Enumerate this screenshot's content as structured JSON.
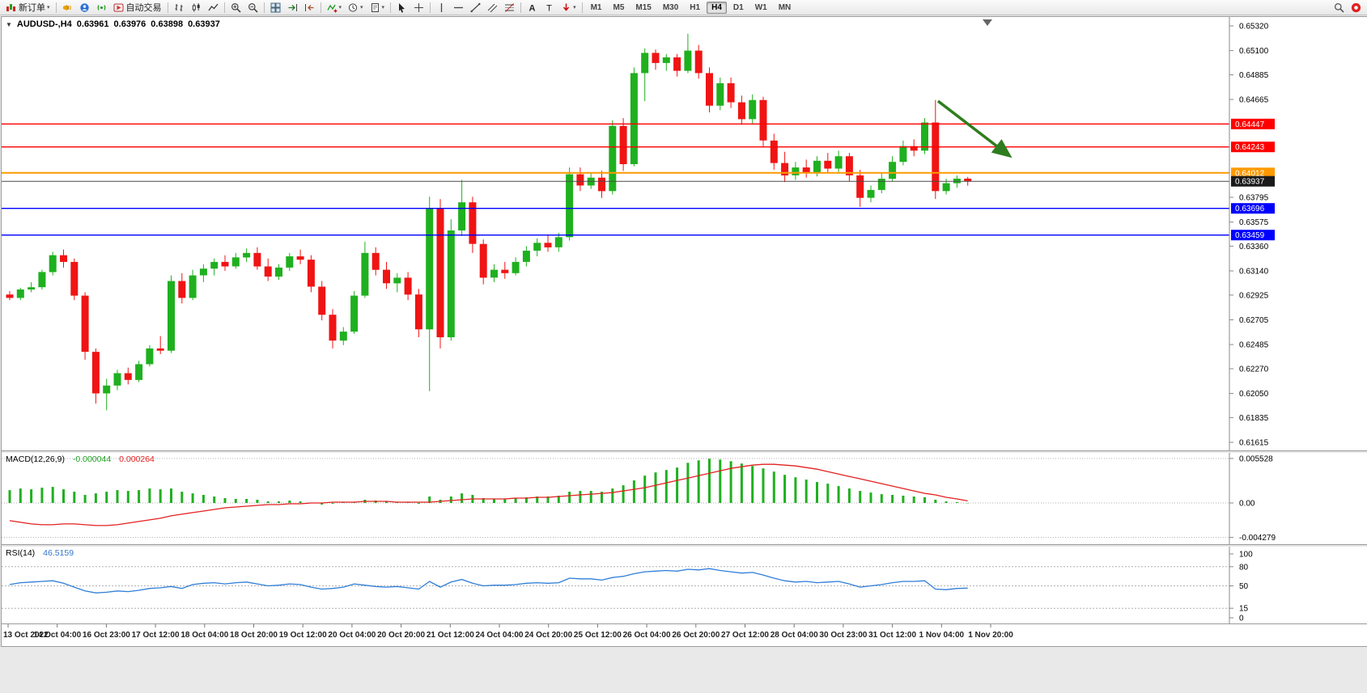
{
  "colors": {
    "candle_up": "#1fb01f",
    "candle_down": "#f01414",
    "macd_histogram": "#1fb01f",
    "macd_signal": "#e32020",
    "rsi_line": "#2f7ed8",
    "arrow": "#2e7d1e"
  },
  "toolbar": {
    "items": [
      {
        "name": "new-order",
        "icon": "new-order",
        "label": "新订单",
        "caret": true
      },
      {
        "sep": true
      },
      {
        "name": "megaphone",
        "icon": "megaphone"
      },
      {
        "name": "community",
        "icon": "community"
      },
      {
        "name": "signal",
        "icon": "signal"
      },
      {
        "name": "autotrading",
        "icon": "autotrading",
        "label": "自动交易"
      },
      {
        "sep": true
      },
      {
        "name": "bar-chart",
        "icon": "bar-chart"
      },
      {
        "name": "candle-chart",
        "icon": "candle-chart"
      },
      {
        "name": "line-chart",
        "icon": "line-chart"
      },
      {
        "sep": true
      },
      {
        "name": "zoom-in",
        "icon": "zoom-in"
      },
      {
        "name": "zoom-out",
        "icon": "zoom-out"
      },
      {
        "sep": true
      },
      {
        "name": "tile-windows",
        "icon": "tile-windows"
      },
      {
        "name": "auto-scroll",
        "icon": "auto-scroll"
      },
      {
        "name": "chart-shift",
        "icon": "chart-shift"
      },
      {
        "sep": true
      },
      {
        "name": "indicators",
        "icon": "indicators",
        "caret": true
      },
      {
        "name": "periods",
        "icon": "periods",
        "caret": true
      },
      {
        "name": "templates",
        "icon": "templates",
        "caret": true
      },
      {
        "sep": true
      },
      {
        "name": "cursor",
        "icon": "cursor"
      },
      {
        "name": "crosshair",
        "icon": "crosshair"
      },
      {
        "sep": true
      },
      {
        "name": "vertical-line",
        "icon": "vertical-line"
      },
      {
        "name": "horizontal-line",
        "icon": "horizontal-line"
      },
      {
        "name": "trendline",
        "icon": "trendline"
      },
      {
        "name": "channel",
        "icon": "channel"
      },
      {
        "name": "fibonacci",
        "icon": "fibonacci"
      },
      {
        "sep": true
      },
      {
        "name": "text",
        "icon": "text"
      },
      {
        "name": "text-label",
        "icon": "text-label"
      },
      {
        "name": "arrows",
        "icon": "arrows",
        "caret": true
      },
      {
        "sep": true
      },
      {
        "tf": "M1"
      },
      {
        "tf": "M5"
      },
      {
        "tf": "M15"
      },
      {
        "tf": "M30"
      },
      {
        "tf": "H1"
      },
      {
        "tf": "H4",
        "active": true
      },
      {
        "tf": "D1"
      },
      {
        "tf": "W1"
      },
      {
        "tf": "MN"
      },
      {
        "spacer": true
      },
      {
        "name": "search",
        "icon": "search"
      },
      {
        "name": "notification",
        "icon": "notification"
      }
    ]
  },
  "chart": {
    "collapse_marker": "▼",
    "symbol_period": "AUDUSD-,H4",
    "open": "0.63961",
    "high": "0.63976",
    "low": "0.63898",
    "close": "0.63937"
  },
  "price_axis": {
    "ticks": [
      "0.65320",
      "0.65100",
      "0.64885",
      "0.64665",
      "0.63795",
      "0.63575",
      "0.63360",
      "0.63140",
      "0.62925",
      "0.62705",
      "0.62485",
      "0.62270",
      "0.62050",
      "0.61835",
      "0.61615"
    ]
  },
  "levels": [
    {
      "name": "resistance-upper",
      "price": 0.64447,
      "color": "#ff0000",
      "width": 1.4,
      "label_box": true
    },
    {
      "name": "resistance-lower",
      "price": 0.64243,
      "color": "#ff0000",
      "width": 1.4,
      "label_box": true
    },
    {
      "name": "pivot-orange",
      "price": 0.64012,
      "color": "#ff9900",
      "width": 2,
      "label_box": true
    },
    {
      "name": "current-price",
      "price": 0.63937,
      "color": "#4a4a4a",
      "width": 1,
      "label_box": true,
      "box_color": "#1a1a1a"
    },
    {
      "name": "support-upper",
      "price": 0.63696,
      "color": "#0000ff",
      "width": 1.4,
      "label_box": true
    },
    {
      "name": "support-lower",
      "price": 0.63459,
      "color": "#0000ff",
      "width": 1.4,
      "label_box": true
    }
  ],
  "indicators": {
    "macd": {
      "name": "MACD(12,26,9)",
      "main_value": "-0.000044",
      "signal_value": "0.000264",
      "axis_ticks": [
        "0.005528",
        "0.00",
        "-0.004279"
      ]
    },
    "rsi": {
      "name": "RSI(14)",
      "value": "46.5159",
      "axis_ticks": [
        "100",
        "80",
        "50",
        "15",
        "0"
      ],
      "levels": [
        80,
        50,
        15
      ]
    }
  },
  "time_axis": {
    "labels": [
      "13 Oct 2022",
      "14 Oct 04:00",
      "16 Oct 23:00",
      "17 Oct 12:00",
      "18 Oct 04:00",
      "18 Oct 20:00",
      "19 Oct 12:00",
      "20 Oct 04:00",
      "20 Oct 20:00",
      "21 Oct 12:00",
      "24 Oct 04:00",
      "24 Oct 20:00",
      "25 Oct 12:00",
      "26 Oct 04:00",
      "26 Oct 20:00",
      "27 Oct 12:00",
      "28 Oct 04:00",
      "30 Oct 23:00",
      "31 Oct 12:00",
      "1 Nov 04:00",
      "1 Nov 20:00"
    ]
  },
  "annotations": {
    "trend_arrow": {
      "direction": "down-right",
      "color": "#2e7d1e"
    }
  },
  "chart_data": [
    {
      "type": "candlestick",
      "name": "AUDUSD H4",
      "ylim": [
        0.61615,
        0.6532
      ],
      "ohlc": [
        [
          0.6293,
          0.6296,
          0.6288,
          0.629
        ],
        [
          0.629,
          0.6299,
          0.6288,
          0.62975
        ],
        [
          0.62975,
          0.6304,
          0.6295,
          0.62995
        ],
        [
          0.62995,
          0.6315,
          0.62975,
          0.6313
        ],
        [
          0.6313,
          0.6331,
          0.631,
          0.6328
        ],
        [
          0.6328,
          0.6333,
          0.6317,
          0.6322
        ],
        [
          0.6322,
          0.6325,
          0.6288,
          0.6292
        ],
        [
          0.6292,
          0.6295,
          0.6235,
          0.6242
        ],
        [
          0.6242,
          0.6245,
          0.6196,
          0.6205
        ],
        [
          0.6205,
          0.6218,
          0.619,
          0.6212
        ],
        [
          0.6212,
          0.6226,
          0.6208,
          0.6223
        ],
        [
          0.6223,
          0.6228,
          0.6213,
          0.6217
        ],
        [
          0.6217,
          0.6234,
          0.6215,
          0.6231
        ],
        [
          0.6231,
          0.6248,
          0.6229,
          0.6245
        ],
        [
          0.6245,
          0.6256,
          0.624,
          0.6243
        ],
        [
          0.6243,
          0.631,
          0.6241,
          0.6305
        ],
        [
          0.6305,
          0.6312,
          0.6285,
          0.629
        ],
        [
          0.629,
          0.6315,
          0.6288,
          0.631
        ],
        [
          0.631,
          0.632,
          0.6304,
          0.6316
        ],
        [
          0.6316,
          0.6325,
          0.631,
          0.6322
        ],
        [
          0.6322,
          0.6328,
          0.6314,
          0.6318
        ],
        [
          0.6318,
          0.633,
          0.6316,
          0.6326
        ],
        [
          0.6326,
          0.6334,
          0.6322,
          0.633
        ],
        [
          0.633,
          0.6335,
          0.6315,
          0.6318
        ],
        [
          0.6318,
          0.6325,
          0.6305,
          0.6309
        ],
        [
          0.6309,
          0.632,
          0.6306,
          0.6317
        ],
        [
          0.6317,
          0.633,
          0.6314,
          0.6327
        ],
        [
          0.6327,
          0.6333,
          0.632,
          0.6324
        ],
        [
          0.6324,
          0.6328,
          0.6295,
          0.63
        ],
        [
          0.63,
          0.6305,
          0.627,
          0.6275
        ],
        [
          0.6275,
          0.628,
          0.6245,
          0.6252
        ],
        [
          0.6252,
          0.6264,
          0.6248,
          0.626
        ],
        [
          0.626,
          0.6296,
          0.6258,
          0.6292
        ],
        [
          0.6292,
          0.634,
          0.629,
          0.633
        ],
        [
          0.633,
          0.6335,
          0.631,
          0.6315
        ],
        [
          0.6315,
          0.6322,
          0.6298,
          0.6303
        ],
        [
          0.6303,
          0.6312,
          0.6295,
          0.6308
        ],
        [
          0.6308,
          0.6313,
          0.6288,
          0.6293
        ],
        [
          0.6293,
          0.6298,
          0.6255,
          0.6262
        ],
        [
          0.6262,
          0.638,
          0.6207,
          0.637
        ],
        [
          0.637,
          0.6378,
          0.6245,
          0.6255
        ],
        [
          0.6255,
          0.636,
          0.6252,
          0.635
        ],
        [
          0.635,
          0.6395,
          0.6345,
          0.6375
        ],
        [
          0.6375,
          0.638,
          0.633,
          0.6338
        ],
        [
          0.6338,
          0.6342,
          0.6302,
          0.6308
        ],
        [
          0.6308,
          0.632,
          0.6304,
          0.6315
        ],
        [
          0.6315,
          0.6322,
          0.6307,
          0.6312
        ],
        [
          0.6312,
          0.6326,
          0.631,
          0.6322
        ],
        [
          0.6322,
          0.6336,
          0.6318,
          0.6332
        ],
        [
          0.6332,
          0.6343,
          0.6327,
          0.6339
        ],
        [
          0.6339,
          0.6346,
          0.6331,
          0.6335
        ],
        [
          0.6335,
          0.6348,
          0.6331,
          0.6344
        ],
        [
          0.6344,
          0.6406,
          0.6341,
          0.64
        ],
        [
          0.64,
          0.6406,
          0.6385,
          0.639
        ],
        [
          0.639,
          0.6401,
          0.6387,
          0.6397
        ],
        [
          0.6397,
          0.6403,
          0.6379,
          0.6385
        ],
        [
          0.6385,
          0.6448,
          0.6382,
          0.6443
        ],
        [
          0.6443,
          0.645,
          0.6403,
          0.6409
        ],
        [
          0.6409,
          0.6495,
          0.6407,
          0.649
        ],
        [
          0.649,
          0.6512,
          0.6465,
          0.6508
        ],
        [
          0.6508,
          0.6511,
          0.6493,
          0.6499
        ],
        [
          0.6499,
          0.6507,
          0.6492,
          0.6504
        ],
        [
          0.6504,
          0.6507,
          0.6487,
          0.6492
        ],
        [
          0.6492,
          0.6525,
          0.649,
          0.651
        ],
        [
          0.651,
          0.6515,
          0.6485,
          0.649
        ],
        [
          0.649,
          0.6495,
          0.6455,
          0.6461
        ],
        [
          0.6461,
          0.6486,
          0.6457,
          0.6481
        ],
        [
          0.6481,
          0.6486,
          0.6459,
          0.6464
        ],
        [
          0.6464,
          0.647,
          0.6444,
          0.6449
        ],
        [
          0.6449,
          0.6471,
          0.6445,
          0.6466
        ],
        [
          0.6466,
          0.6469,
          0.6424,
          0.643
        ],
        [
          0.643,
          0.6436,
          0.6404,
          0.641
        ],
        [
          0.641,
          0.642,
          0.6393,
          0.6399
        ],
        [
          0.6399,
          0.6411,
          0.6395,
          0.6406
        ],
        [
          0.6406,
          0.6413,
          0.6397,
          0.6401
        ],
        [
          0.6401,
          0.6416,
          0.6398,
          0.6412
        ],
        [
          0.6412,
          0.6419,
          0.6401,
          0.6405
        ],
        [
          0.6405,
          0.6421,
          0.6402,
          0.6416
        ],
        [
          0.6416,
          0.6419,
          0.6394,
          0.6399
        ],
        [
          0.6399,
          0.6404,
          0.6371,
          0.6379
        ],
        [
          0.6379,
          0.639,
          0.6375,
          0.6386
        ],
        [
          0.6386,
          0.6401,
          0.6383,
          0.6396
        ],
        [
          0.6396,
          0.6416,
          0.6394,
          0.6411
        ],
        [
          0.6411,
          0.643,
          0.6408,
          0.6425
        ],
        [
          0.6425,
          0.6431,
          0.6416,
          0.6421
        ],
        [
          0.6421,
          0.645,
          0.6418,
          0.6446
        ],
        [
          0.6446,
          0.6466,
          0.6378,
          0.6385
        ],
        [
          0.6385,
          0.6396,
          0.6382,
          0.6392
        ],
        [
          0.6392,
          0.6399,
          0.6388,
          0.63961
        ],
        [
          0.63961,
          0.63976,
          0.63898,
          0.63937
        ]
      ]
    },
    {
      "type": "bar",
      "name": "MACD histogram",
      "ylim": [
        -0.004279,
        0.005528
      ],
      "values": [
        0.0016,
        0.0018,
        0.0017,
        0.0019,
        0.002,
        0.0017,
        0.0014,
        0.001,
        0.0012,
        0.0014,
        0.0016,
        0.0015,
        0.0016,
        0.0018,
        0.0017,
        0.0018,
        0.0014,
        0.0012,
        0.001,
        0.0008,
        0.0006,
        0.0005,
        0.0005,
        0.0004,
        0.0002,
        0.0002,
        0.0003,
        0.0002,
        0.0,
        -0.0002,
        -0.0001,
        0.0001,
        0.0001,
        0.0004,
        0.0003,
        0.0002,
        0.0001,
        0.0001,
        -0.0001,
        0.0008,
        0.0004,
        0.0008,
        0.0012,
        0.001,
        0.0006,
        0.0005,
        0.0005,
        0.0006,
        0.0007,
        0.0008,
        0.0008,
        0.0009,
        0.0014,
        0.0015,
        0.0015,
        0.0014,
        0.0018,
        0.0022,
        0.0028,
        0.0034,
        0.0038,
        0.0041,
        0.0044,
        0.005,
        0.0053,
        0.0055,
        0.0054,
        0.0052,
        0.0049,
        0.0046,
        0.0043,
        0.0039,
        0.0035,
        0.0032,
        0.0029,
        0.0026,
        0.0024,
        0.0021,
        0.0018,
        0.0015,
        0.0013,
        0.0011,
        0.001,
        0.0009,
        0.0008,
        0.0007,
        0.0004,
        0.0002,
        0.0001,
        -4.4e-05
      ]
    },
    {
      "type": "line",
      "name": "MACD signal",
      "values": [
        -0.0022,
        -0.0024,
        -0.0026,
        -0.0027,
        -0.0027,
        -0.0026,
        -0.0026,
        -0.0027,
        -0.0028,
        -0.0028,
        -0.0027,
        -0.0025,
        -0.0023,
        -0.0021,
        -0.0019,
        -0.0016,
        -0.0014,
        -0.0012,
        -0.001,
        -0.0008,
        -0.0006,
        -0.0005,
        -0.0004,
        -0.0003,
        -0.0002,
        -0.0002,
        -0.0001,
        -0.0001,
        0.0,
        0.0,
        0.0001,
        0.0001,
        0.0001,
        0.0002,
        0.0002,
        0.0002,
        0.0001,
        0.0001,
        0.0001,
        0.0001,
        0.0002,
        0.0003,
        0.0004,
        0.0005,
        0.0005,
        0.0005,
        0.0005,
        0.0006,
        0.0006,
        0.0007,
        0.0007,
        0.0008,
        0.0009,
        0.001,
        0.0011,
        0.0012,
        0.0013,
        0.0015,
        0.0017,
        0.0019,
        0.0022,
        0.0025,
        0.0028,
        0.0031,
        0.0034,
        0.0037,
        0.004,
        0.0043,
        0.0045,
        0.0047,
        0.0048,
        0.0048,
        0.0047,
        0.0046,
        0.0044,
        0.0042,
        0.0039,
        0.0036,
        0.0033,
        0.003,
        0.0027,
        0.0024,
        0.0021,
        0.0018,
        0.0015,
        0.0012,
        0.001,
        0.0007,
        0.0005,
        0.000264
      ]
    },
    {
      "type": "line",
      "name": "RSI(14)",
      "ylim": [
        0,
        100
      ],
      "values": [
        52,
        55,
        56,
        57,
        58,
        54,
        48,
        42,
        39,
        40,
        42,
        41,
        43,
        46,
        47,
        49,
        46,
        52,
        54,
        55,
        53,
        55,
        56,
        53,
        50,
        51,
        53,
        52,
        48,
        45,
        46,
        48,
        53,
        51,
        49,
        48,
        49,
        47,
        45,
        57,
        48,
        56,
        60,
        54,
        50,
        51,
        51,
        52,
        54,
        55,
        54,
        55,
        62,
        61,
        61,
        59,
        63,
        65,
        69,
        72,
        73,
        74,
        73,
        76,
        75,
        77,
        74,
        72,
        70,
        71,
        67,
        62,
        58,
        56,
        57,
        55,
        56,
        57,
        53,
        48,
        50,
        52,
        55,
        57,
        57,
        58,
        45,
        44,
        46,
        46.5
      ]
    }
  ]
}
